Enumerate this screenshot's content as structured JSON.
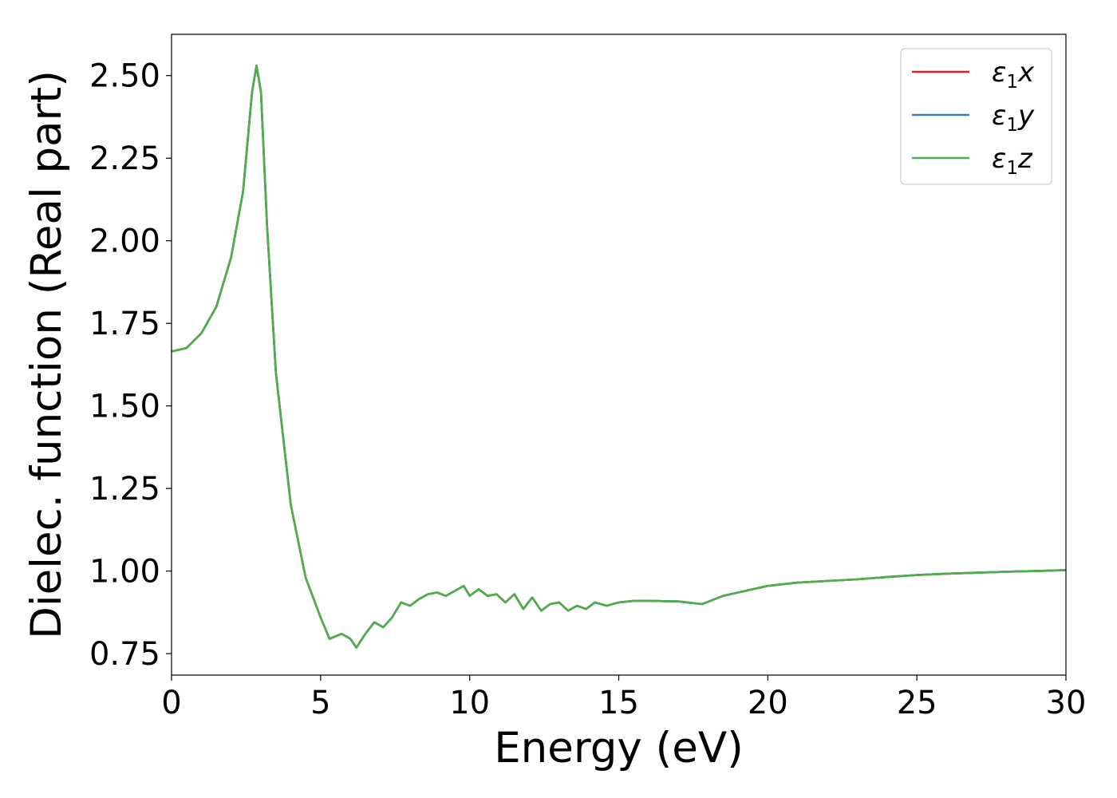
{
  "chart_data": {
    "type": "line",
    "xlabel": "Energy (eV)",
    "ylabel": "Dielec. function (Real part)",
    "xlim": [
      0,
      30
    ],
    "ylim": [
      0.685,
      2.625
    ],
    "xticks": [
      0,
      5,
      10,
      15,
      20,
      25,
      30
    ],
    "xtick_labels": [
      "0",
      "5",
      "10",
      "15",
      "20",
      "25",
      "30"
    ],
    "yticks": [
      0.75,
      1.0,
      1.25,
      1.5,
      1.75,
      2.0,
      2.25,
      2.5
    ],
    "ytick_labels": [
      "0.75",
      "1.00",
      "1.25",
      "1.50",
      "1.75",
      "2.00",
      "2.25",
      "2.50"
    ],
    "grid": false,
    "legend_position": "top-right",
    "x": [
      0,
      0.5,
      1.0,
      1.5,
      2.0,
      2.4,
      2.7,
      2.85,
      3.0,
      3.2,
      3.5,
      4.0,
      4.5,
      5.0,
      5.3,
      5.7,
      6.0,
      6.2,
      6.5,
      6.8,
      7.1,
      7.4,
      7.7,
      8.0,
      8.3,
      8.6,
      8.9,
      9.2,
      9.5,
      9.8,
      10.0,
      10.3,
      10.6,
      10.9,
      11.2,
      11.5,
      11.8,
      12.1,
      12.4,
      12.7,
      13.0,
      13.3,
      13.6,
      13.9,
      14.2,
      14.6,
      15.0,
      15.5,
      16.0,
      17.0,
      17.8,
      18.5,
      19.0,
      20.0,
      21.0,
      22.0,
      23.0,
      24.0,
      25.0,
      26.0,
      27.0,
      28.0,
      29.0,
      30.0
    ],
    "series": [
      {
        "name": "ε1x",
        "color": "#e41a1c",
        "y": [
          1.665,
          1.675,
          1.72,
          1.8,
          1.95,
          2.15,
          2.45,
          2.53,
          2.45,
          2.05,
          1.6,
          1.2,
          0.98,
          0.86,
          0.795,
          0.81,
          0.795,
          0.768,
          0.81,
          0.845,
          0.83,
          0.86,
          0.905,
          0.895,
          0.915,
          0.93,
          0.935,
          0.925,
          0.94,
          0.955,
          0.925,
          0.945,
          0.925,
          0.93,
          0.905,
          0.93,
          0.885,
          0.92,
          0.88,
          0.9,
          0.905,
          0.88,
          0.895,
          0.885,
          0.905,
          0.895,
          0.905,
          0.91,
          0.91,
          0.908,
          0.9,
          0.925,
          0.935,
          0.955,
          0.965,
          0.97,
          0.975,
          0.982,
          0.988,
          0.992,
          0.995,
          0.998,
          1.0,
          1.003
        ]
      },
      {
        "name": "ε1y",
        "color": "#377eb8",
        "y": [
          1.665,
          1.675,
          1.72,
          1.8,
          1.95,
          2.15,
          2.45,
          2.53,
          2.45,
          2.05,
          1.6,
          1.2,
          0.98,
          0.86,
          0.795,
          0.81,
          0.795,
          0.768,
          0.81,
          0.845,
          0.83,
          0.86,
          0.905,
          0.895,
          0.915,
          0.93,
          0.935,
          0.925,
          0.94,
          0.955,
          0.925,
          0.945,
          0.925,
          0.93,
          0.905,
          0.93,
          0.885,
          0.92,
          0.88,
          0.9,
          0.905,
          0.88,
          0.895,
          0.885,
          0.905,
          0.895,
          0.905,
          0.91,
          0.91,
          0.908,
          0.9,
          0.925,
          0.935,
          0.955,
          0.965,
          0.97,
          0.975,
          0.982,
          0.988,
          0.992,
          0.995,
          0.998,
          1.0,
          1.003
        ]
      },
      {
        "name": "ε1z",
        "color": "#4daf4a",
        "y": [
          1.665,
          1.675,
          1.72,
          1.8,
          1.95,
          2.15,
          2.45,
          2.53,
          2.45,
          2.05,
          1.6,
          1.2,
          0.98,
          0.86,
          0.795,
          0.81,
          0.795,
          0.768,
          0.81,
          0.845,
          0.83,
          0.86,
          0.905,
          0.895,
          0.915,
          0.93,
          0.935,
          0.925,
          0.94,
          0.955,
          0.925,
          0.945,
          0.925,
          0.93,
          0.905,
          0.93,
          0.885,
          0.92,
          0.88,
          0.9,
          0.905,
          0.88,
          0.895,
          0.885,
          0.905,
          0.895,
          0.905,
          0.91,
          0.91,
          0.908,
          0.9,
          0.925,
          0.935,
          0.955,
          0.965,
          0.97,
          0.975,
          0.982,
          0.988,
          0.992,
          0.995,
          0.998,
          1.0,
          1.003
        ]
      }
    ],
    "legend": [
      {
        "symbol": "ε",
        "sub": "1",
        "var": "x",
        "color": "#e41a1c"
      },
      {
        "symbol": "ε",
        "sub": "1",
        "var": "y",
        "color": "#377eb8"
      },
      {
        "symbol": "ε",
        "sub": "1",
        "var": "z",
        "color": "#4daf4a"
      }
    ]
  }
}
